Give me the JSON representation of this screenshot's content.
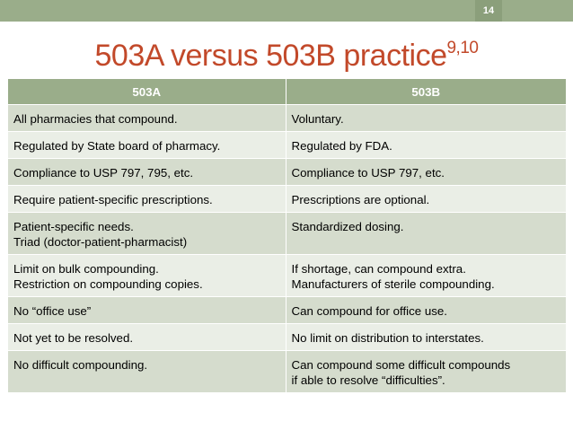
{
  "slide": {
    "page_number": "14",
    "title": "503A versus 503B practice",
    "title_superscript": "9,10",
    "accent_color": "#9aad8a",
    "title_color": "#c2492a"
  },
  "table": {
    "headers": [
      "503A",
      "503B"
    ],
    "rows": [
      {
        "a": [
          "All pharmacies that compound."
        ],
        "b": [
          "Voluntary."
        ]
      },
      {
        "a": [
          "Regulated by State board of pharmacy."
        ],
        "b": [
          "Regulated by FDA."
        ]
      },
      {
        "a": [
          "Compliance to USP 797, 795, etc."
        ],
        "b": [
          "Compliance to USP 797, etc."
        ]
      },
      {
        "a": [
          "Require patient-specific prescriptions."
        ],
        "b": [
          "Prescriptions are optional."
        ]
      },
      {
        "a": [
          "Patient-specific needs.",
          "Triad (doctor-patient-pharmacist)"
        ],
        "b": [
          "Standardized dosing."
        ]
      },
      {
        "a": [
          "Limit on bulk compounding.",
          "Restriction on compounding copies."
        ],
        "b": [
          "If shortage, can compound extra.",
          "Manufacturers of sterile compounding."
        ]
      },
      {
        "a": [
          "No “office use”"
        ],
        "b": [
          "Can compound for office use."
        ]
      },
      {
        "a": [
          "Not yet to be resolved."
        ],
        "b": [
          "No limit on distribution to interstates."
        ]
      },
      {
        "a": [
          "No difficult compounding."
        ],
        "b": [
          "Can compound some difficult compounds",
          "if able to resolve “difficulties”."
        ]
      }
    ]
  }
}
